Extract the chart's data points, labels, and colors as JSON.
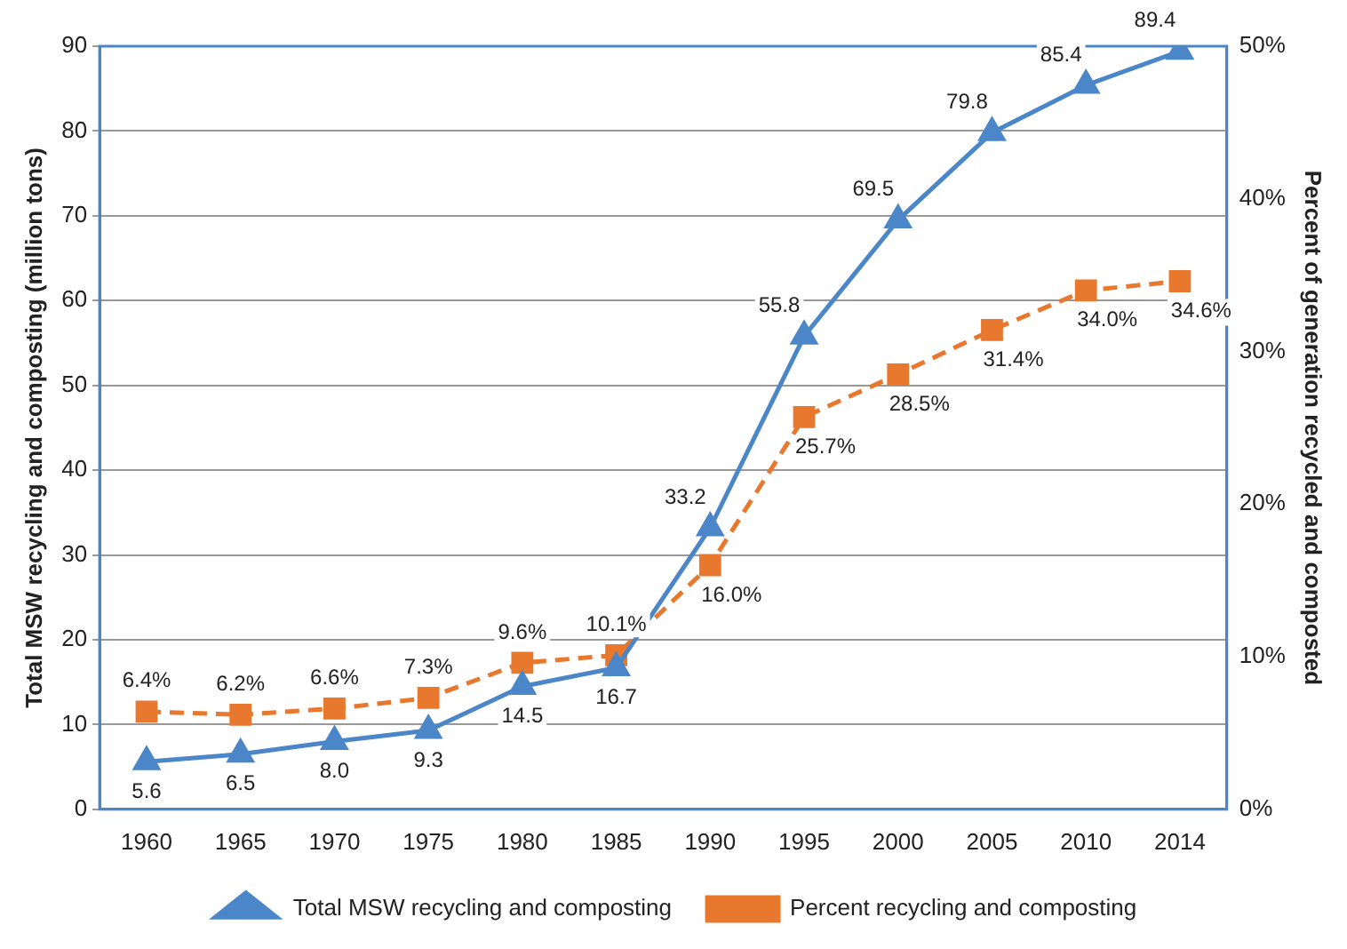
{
  "chart_data": {
    "type": "line",
    "ylabel": "Total MSW recycling and composting (million tons)",
    "y2label": "Percent of generation recycled and composted",
    "categories": [
      "1960",
      "1965",
      "1970",
      "1975",
      "1980",
      "1985",
      "1990",
      "1995",
      "2000",
      "2005",
      "2010",
      "2014"
    ],
    "series": [
      {
        "name": "Total MSW recycling and composting",
        "color": "#4a86c8",
        "marker": "triangle",
        "line_style": "solid",
        "values": [
          5.6,
          6.5,
          8.0,
          9.3,
          14.5,
          16.7,
          33.2,
          55.8,
          69.5,
          79.8,
          85.4,
          89.4
        ],
        "value_labels": [
          "5.6",
          "6.5",
          "8.0",
          "9.3",
          "14.5",
          "16.7",
          "33.2",
          "55.8",
          "69.5",
          "79.8",
          "85.4",
          "89.4"
        ]
      },
      {
        "name": "Percent recycling and composting",
        "color": "#e8782e",
        "marker": "square",
        "line_style": "dashed",
        "axis": "y2",
        "values": [
          6.4,
          6.2,
          6.6,
          7.3,
          9.6,
          10.1,
          16.0,
          25.7,
          28.5,
          31.4,
          34.0,
          34.6
        ],
        "value_labels": [
          "6.4%",
          "6.2%",
          "6.6%",
          "7.3%",
          "9.6%",
          "10.1%",
          "16.0%",
          "25.7%",
          "28.5%",
          "31.4%",
          "34.0%",
          "34.6%"
        ]
      }
    ],
    "ylim": [
      0,
      90
    ],
    "yticks": [
      0,
      10,
      20,
      30,
      40,
      50,
      60,
      70,
      80,
      90
    ],
    "y2lim": [
      0,
      50
    ],
    "y2ticks": [
      {
        "value": 0,
        "label": "0%"
      },
      {
        "value": 10,
        "label": "10%"
      },
      {
        "value": 20,
        "label": "20%"
      },
      {
        "value": 30,
        "label": "30%"
      },
      {
        "value": 40,
        "label": "40%"
      },
      {
        "value": 50,
        "label": "50%"
      }
    ],
    "grid": "y",
    "legend": "bottom"
  }
}
